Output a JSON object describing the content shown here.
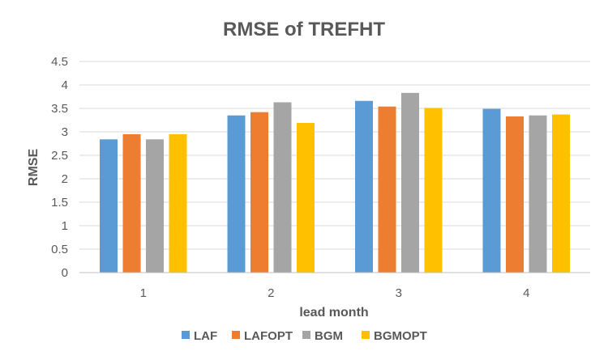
{
  "chart_data": {
    "type": "bar",
    "title": "RMSE of TREFHT",
    "xlabel": "lead month",
    "ylabel": "RMSE",
    "categories": [
      "1",
      "2",
      "3",
      "4"
    ],
    "series": [
      {
        "name": "LAF",
        "color": "#5b9bd5",
        "values": [
          2.84,
          3.35,
          3.66,
          3.49
        ]
      },
      {
        "name": "LAFOPT",
        "color": "#ed7d31",
        "values": [
          2.95,
          3.42,
          3.54,
          3.33
        ]
      },
      {
        "name": "BGM",
        "color": "#a5a5a5",
        "values": [
          2.84,
          3.63,
          3.83,
          3.35
        ]
      },
      {
        "name": "BGMOPT",
        "color": "#ffc000",
        "values": [
          2.95,
          3.19,
          3.51,
          3.37
        ]
      }
    ],
    "ylim": [
      0,
      4.5
    ],
    "yticks": [
      "0",
      "0.5",
      "1",
      "1.5",
      "2",
      "2.5",
      "3",
      "3.5",
      "4",
      "4.5"
    ],
    "grid": true,
    "legend_position": "bottom"
  }
}
